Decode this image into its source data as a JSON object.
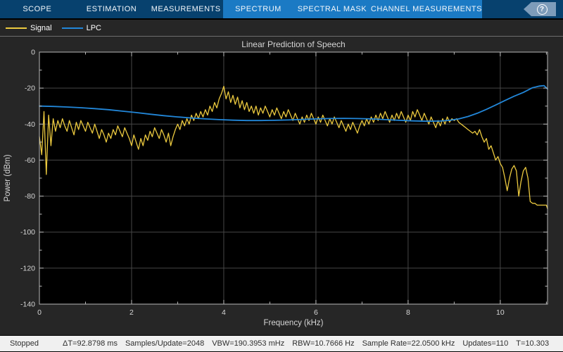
{
  "toolbar": {
    "tabs": [
      {
        "label": "SCOPE",
        "highlighted": false
      },
      {
        "label": "ESTIMATION",
        "highlighted": false
      },
      {
        "label": "MEASUREMENTS",
        "highlighted": false
      },
      {
        "label": "SPECTRUM",
        "highlighted": true
      },
      {
        "label": "SPECTRAL MASK",
        "highlighted": true
      },
      {
        "label": "CHANNEL MEASUREMENTS",
        "highlighted": true
      }
    ],
    "help_label": "?",
    "colors": {
      "dark": "#07416e",
      "light": "#1b7ac4",
      "help": "#7d9cba"
    }
  },
  "legend": [
    {
      "label": "Signal",
      "color": "#ecca3f"
    },
    {
      "label": "LPC",
      "color": "#2287d9"
    }
  ],
  "chart_data": {
    "type": "line",
    "title": "Linear Prediction of Speech",
    "xlabel": "Frequency (kHz)",
    "ylabel": "Power (dBm)",
    "xlim": [
      0,
      11.025
    ],
    "ylim": [
      -140,
      0
    ],
    "x_ticks": [
      0,
      2,
      4,
      6,
      8,
      10
    ],
    "x_minor_ticks": [
      1,
      3,
      5,
      7,
      9,
      11
    ],
    "y_ticks": [
      0,
      -20,
      -40,
      -60,
      -80,
      -100,
      -120,
      -140
    ],
    "y_minor_ticks": [
      -10,
      -30,
      -50,
      -70,
      -90,
      -110,
      -130
    ],
    "grid": true,
    "legend_position": "top-left",
    "plot_bg": "#000000",
    "grid_color": "#474747",
    "axis_color": "#b8b8b8",
    "text_color": "#d6d6d6",
    "series": [
      {
        "name": "Signal",
        "color": "#ecca3f",
        "width": 1.3,
        "x_start": 0,
        "x_step": 0.05,
        "y": [
          -47,
          -57,
          -33,
          -68,
          -35,
          -52,
          -37,
          -44,
          -38,
          -42,
          -37,
          -41,
          -44,
          -38,
          -42,
          -46,
          -39,
          -43,
          -38,
          -41,
          -44,
          -39,
          -42,
          -45,
          -40,
          -44,
          -48,
          -43,
          -46,
          -50,
          -45,
          -48,
          -43,
          -46,
          -41,
          -44,
          -47,
          -42,
          -45,
          -48,
          -52,
          -46,
          -50,
          -54,
          -48,
          -52,
          -46,
          -49,
          -44,
          -47,
          -42,
          -45,
          -48,
          -43,
          -46,
          -50,
          -45,
          -52,
          -47,
          -43,
          -40,
          -43,
          -38,
          -41,
          -37,
          -40,
          -35,
          -38,
          -34,
          -37,
          -33,
          -36,
          -32,
          -35,
          -30,
          -33,
          -28,
          -31,
          -26,
          -23,
          -19,
          -26,
          -22,
          -28,
          -24,
          -29,
          -25,
          -31,
          -27,
          -32,
          -28,
          -33,
          -30,
          -34,
          -30,
          -35,
          -31,
          -34,
          -30,
          -33,
          -36,
          -32,
          -35,
          -31,
          -34,
          -37,
          -33,
          -36,
          -32,
          -35,
          -38,
          -34,
          -37,
          -40,
          -36,
          -39,
          -35,
          -38,
          -34,
          -37,
          -40,
          -36,
          -39,
          -35,
          -38,
          -41,
          -37,
          -40,
          -36,
          -39,
          -42,
          -38,
          -41,
          -44,
          -40,
          -43,
          -39,
          -42,
          -45,
          -41,
          -38,
          -41,
          -37,
          -40,
          -36,
          -39,
          -35,
          -38,
          -34,
          -37,
          -33,
          -36,
          -39,
          -35,
          -38,
          -34,
          -37,
          -33,
          -36,
          -39,
          -35,
          -38,
          -33,
          -36,
          -32,
          -35,
          -38,
          -34,
          -37,
          -40,
          -36,
          -39,
          -42,
          -38,
          -41,
          -37,
          -40,
          -36,
          -39,
          -37,
          -38,
          -37,
          -39,
          -40,
          -41,
          -42,
          -43,
          -44,
          -45,
          -44,
          -46,
          -43,
          -47,
          -50,
          -48,
          -54,
          -52,
          -56,
          -60,
          -58,
          -62,
          -64,
          -70,
          -77,
          -70,
          -65,
          -63,
          -66,
          -80,
          -72,
          -66,
          -64,
          -70,
          -83,
          -84,
          -84,
          -85,
          -85,
          -85,
          -85,
          -85,
          -87
        ]
      },
      {
        "name": "LPC",
        "color": "#2287d9",
        "width": 1.8,
        "x": [
          0,
          0.3,
          0.6,
          0.9,
          1.2,
          1.5,
          1.8,
          2.1,
          2.4,
          2.7,
          3.0,
          3.3,
          3.6,
          3.9,
          4.2,
          4.5,
          4.8,
          5.1,
          5.4,
          5.7,
          6.0,
          6.3,
          6.6,
          6.9,
          7.2,
          7.5,
          7.8,
          8.1,
          8.4,
          8.7,
          8.9,
          9.1,
          9.3,
          9.5,
          9.7,
          9.9,
          10.1,
          10.3,
          10.5,
          10.7,
          10.85,
          10.95,
          11.025
        ],
        "y": [
          -30,
          -30.2,
          -30.5,
          -30.9,
          -31.4,
          -32,
          -32.8,
          -33.6,
          -34.5,
          -35.3,
          -36,
          -36.6,
          -37.1,
          -37.5,
          -37.8,
          -38,
          -38,
          -37.9,
          -37.7,
          -37.4,
          -37.1,
          -36.9,
          -36.8,
          -36.9,
          -37.1,
          -37.5,
          -37.9,
          -38.2,
          -38.4,
          -38.3,
          -37.9,
          -37.1,
          -35.8,
          -34,
          -31.8,
          -29.4,
          -26.9,
          -24.5,
          -22.4,
          -19.8,
          -18.9,
          -18.6,
          -20.5
        ]
      }
    ]
  },
  "status_bar": {
    "state": "Stopped",
    "items": [
      "ΔT=92.8798 ms",
      "Samples/Update=2048",
      "VBW=190.3953 mHz",
      "RBW=10.7666 Hz",
      "Sample Rate=22.0500 kHz",
      "Updates=110",
      "T=10.303"
    ]
  }
}
